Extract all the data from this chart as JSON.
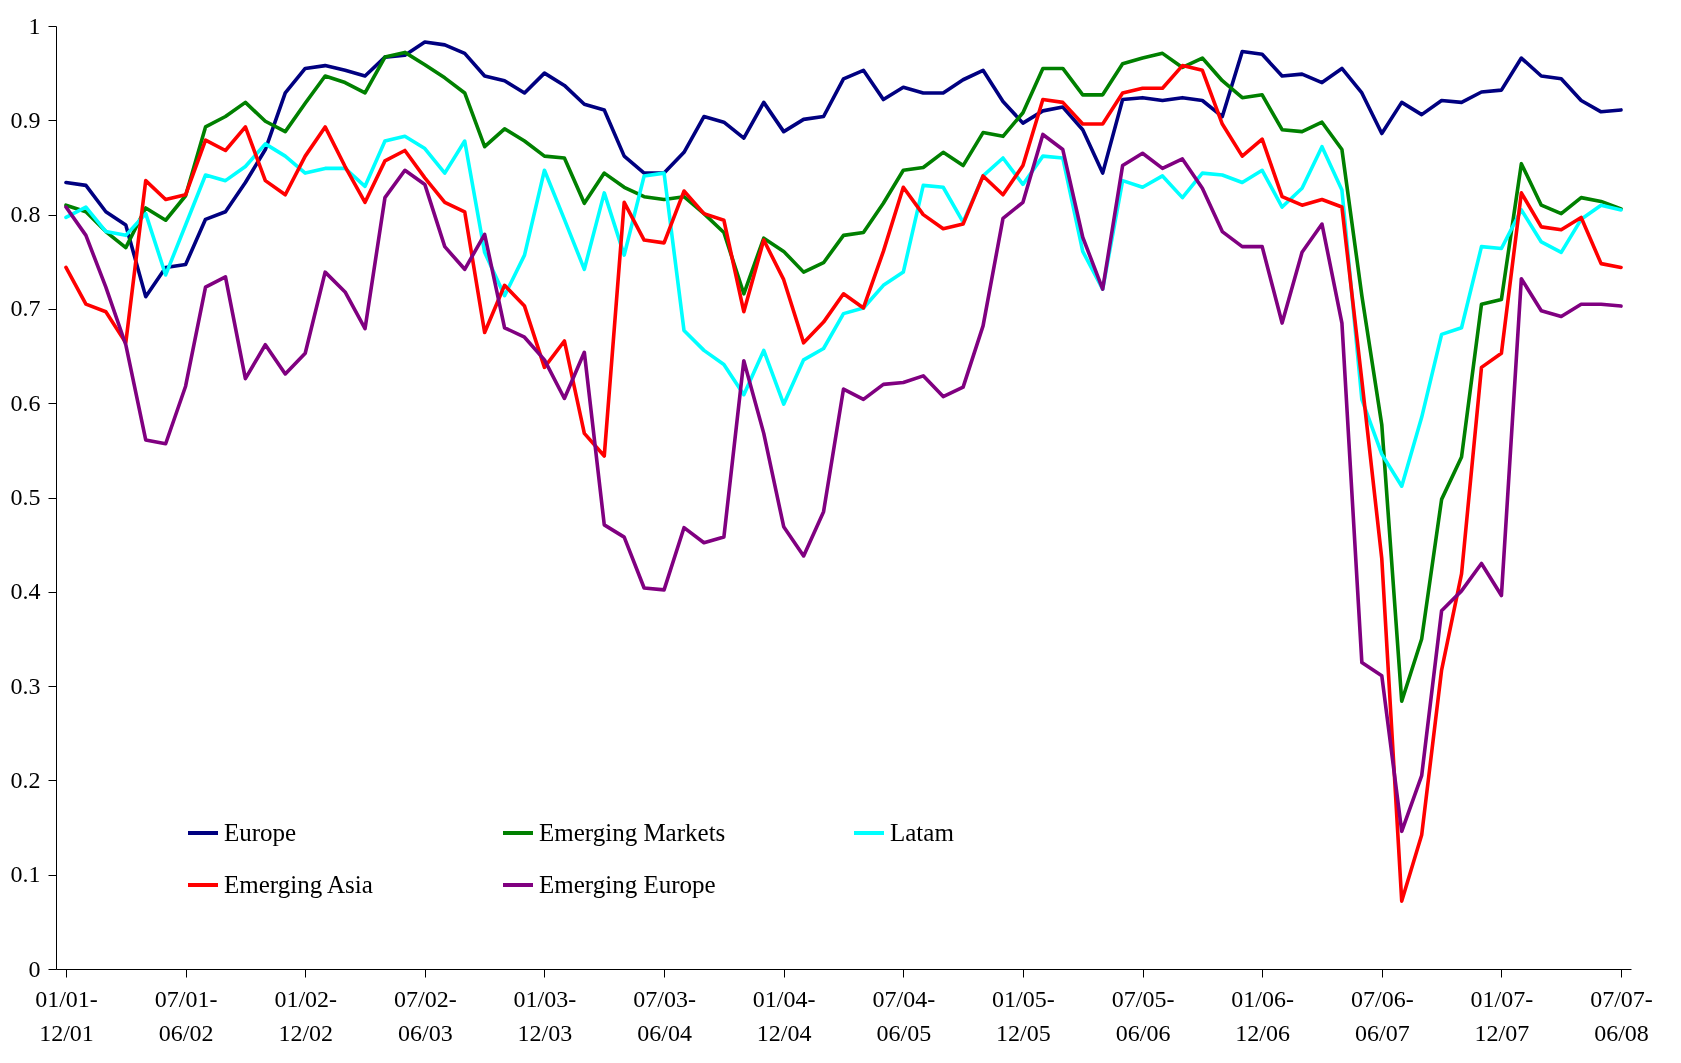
{
  "chart_data": {
    "type": "line",
    "categories": [
      "01/01-12/01",
      null,
      null,
      null,
      null,
      null,
      "07/01-06/02",
      null,
      null,
      null,
      null,
      null,
      "01/02-12/02",
      null,
      null,
      null,
      null,
      null,
      "07/02-06/03",
      null,
      null,
      null,
      null,
      null,
      "01/03-12/03",
      null,
      null,
      null,
      null,
      null,
      "07/03-06/04",
      null,
      null,
      null,
      null,
      null,
      "01/04-12/04",
      null,
      null,
      null,
      null,
      null,
      "07/04-06/05",
      null,
      null,
      null,
      null,
      null,
      "01/05-12/05",
      null,
      null,
      null,
      null,
      null,
      "07/05-06/06",
      null,
      null,
      null,
      null,
      null,
      "01/06-12/06",
      null,
      null,
      null,
      null,
      null,
      "07/06-06/07",
      null,
      null,
      null,
      null,
      null,
      "01/07-12/07",
      null,
      null,
      null,
      null,
      null,
      "07/07-06/08"
    ],
    "ylim": [
      0,
      1
    ],
    "yticks": [
      0,
      0.1,
      0.2,
      0.3,
      0.4,
      0.5,
      0.6,
      0.7,
      0.8,
      0.9,
      1
    ],
    "legend": "bottom left",
    "series": [
      {
        "name": "Europe",
        "color": "#000080",
        "values": [
          0.834,
          0.831,
          0.803,
          0.789,
          0.713,
          0.744,
          0.747,
          0.795,
          0.803,
          0.834,
          0.869,
          0.929,
          0.955,
          0.958,
          0.953,
          0.947,
          0.967,
          0.969,
          0.983,
          0.98,
          0.971,
          0.947,
          0.942,
          0.929,
          0.95,
          0.937,
          0.917,
          0.911,
          0.862,
          0.844,
          0.844,
          0.866,
          0.904,
          0.898,
          0.881,
          0.919,
          0.888,
          0.901,
          0.904,
          0.944,
          0.953,
          0.922,
          0.935,
          0.929,
          0.929,
          0.943,
          0.953,
          0.92,
          0.897,
          0.91,
          0.914,
          0.89,
          0.844,
          0.922,
          0.924,
          0.921,
          0.924,
          0.921,
          0.904,
          0.973,
          0.97,
          0.947,
          0.949,
          0.94,
          0.955,
          0.929,
          0.886,
          0.919,
          0.906,
          0.921,
          0.919,
          0.93,
          0.932,
          0.966,
          0.947,
          0.944,
          0.921,
          0.909,
          0.911
        ]
      },
      {
        "name": "Emerging Markets",
        "color": "#008000",
        "values": [
          0.81,
          0.803,
          0.782,
          0.765,
          0.807,
          0.794,
          0.82,
          0.893,
          0.904,
          0.919,
          0.899,
          0.888,
          0.918,
          0.947,
          0.94,
          0.929,
          0.967,
          0.972,
          0.959,
          0.945,
          0.929,
          0.872,
          0.891,
          0.878,
          0.862,
          0.86,
          0.812,
          0.844,
          0.829,
          0.819,
          0.816,
          0.819,
          0.801,
          0.781,
          0.716,
          0.775,
          0.761,
          0.739,
          0.749,
          0.778,
          0.781,
          0.812,
          0.847,
          0.85,
          0.866,
          0.852,
          0.887,
          0.883,
          0.908,
          0.955,
          0.955,
          0.927,
          0.927,
          0.96,
          0.966,
          0.971,
          0.956,
          0.966,
          0.942,
          0.924,
          0.927,
          0.89,
          0.888,
          0.898,
          0.869,
          0.714,
          0.577,
          0.284,
          0.35,
          0.498,
          0.543,
          0.705,
          0.71,
          0.854,
          0.81,
          0.801,
          0.818,
          0.814,
          0.806
        ]
      },
      {
        "name": "Latam",
        "color": "#00ffff",
        "values": [
          0.797,
          0.808,
          0.782,
          0.778,
          0.801,
          0.736,
          0.789,
          0.842,
          0.836,
          0.851,
          0.875,
          0.862,
          0.844,
          0.849,
          0.849,
          0.83,
          0.878,
          0.883,
          0.87,
          0.844,
          0.878,
          0.76,
          0.714,
          0.757,
          0.847,
          0.795,
          0.742,
          0.823,
          0.757,
          0.841,
          0.844,
          0.677,
          0.656,
          0.641,
          0.609,
          0.656,
          0.599,
          0.646,
          0.658,
          0.695,
          0.701,
          0.725,
          0.739,
          0.831,
          0.829,
          0.792,
          0.841,
          0.86,
          0.832,
          0.862,
          0.86,
          0.761,
          0.721,
          0.836,
          0.829,
          0.841,
          0.818,
          0.844,
          0.842,
          0.834,
          0.847,
          0.808,
          0.828,
          0.872,
          0.826,
          0.604,
          0.546,
          0.512,
          0.585,
          0.673,
          0.68,
          0.766,
          0.764,
          0.805,
          0.771,
          0.76,
          0.795,
          0.81,
          0.805
        ]
      },
      {
        "name": "Emerging Asia",
        "color": "#ff0000",
        "values": [
          0.744,
          0.705,
          0.697,
          0.664,
          0.836,
          0.816,
          0.821,
          0.879,
          0.868,
          0.893,
          0.836,
          0.821,
          0.862,
          0.893,
          0.851,
          0.813,
          0.857,
          0.868,
          0.839,
          0.813,
          0.803,
          0.675,
          0.725,
          0.703,
          0.638,
          0.666,
          0.568,
          0.544,
          0.813,
          0.773,
          0.77,
          0.825,
          0.801,
          0.794,
          0.697,
          0.773,
          0.731,
          0.664,
          0.686,
          0.716,
          0.701,
          0.761,
          0.829,
          0.8,
          0.785,
          0.79,
          0.841,
          0.821,
          0.852,
          0.922,
          0.919,
          0.896,
          0.896,
          0.929,
          0.934,
          0.934,
          0.958,
          0.953,
          0.896,
          0.862,
          0.88,
          0.819,
          0.81,
          0.816,
          0.808,
          0.624,
          0.435,
          0.072,
          0.142,
          0.317,
          0.419,
          0.638,
          0.653,
          0.823,
          0.787,
          0.784,
          0.797,
          0.748,
          0.744
        ]
      },
      {
        "name": "Emerging Europe",
        "color": "#800080",
        "values": [
          0.808,
          0.778,
          0.723,
          0.662,
          0.561,
          0.557,
          0.618,
          0.723,
          0.734,
          0.626,
          0.662,
          0.631,
          0.653,
          0.739,
          0.718,
          0.679,
          0.818,
          0.847,
          0.832,
          0.766,
          0.742,
          0.779,
          0.68,
          0.67,
          0.646,
          0.605,
          0.654,
          0.471,
          0.458,
          0.404,
          0.402,
          0.468,
          0.452,
          0.458,
          0.645,
          0.568,
          0.469,
          0.438,
          0.485,
          0.615,
          0.604,
          0.62,
          0.622,
          0.629,
          0.607,
          0.617,
          0.682,
          0.796,
          0.813,
          0.885,
          0.869,
          0.776,
          0.721,
          0.852,
          0.865,
          0.849,
          0.859,
          0.828,
          0.782,
          0.766,
          0.766,
          0.685,
          0.76,
          0.79,
          0.685,
          0.325,
          0.311,
          0.146,
          0.205,
          0.38,
          0.401,
          0.43,
          0.396,
          0.732,
          0.698,
          0.692,
          0.705,
          0.705,
          0.703
        ]
      }
    ]
  }
}
